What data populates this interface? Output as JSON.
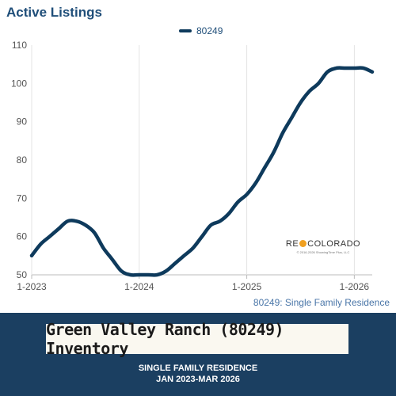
{
  "chart_data": {
    "type": "line",
    "title": "Active Listings",
    "series": [
      {
        "name": "80249",
        "color": "#0e3a5c",
        "x": [
          "2023-01",
          "2023-02",
          "2023-03",
          "2023-04",
          "2023-05",
          "2023-06",
          "2023-07",
          "2023-08",
          "2023-09",
          "2023-10",
          "2023-11",
          "2023-12",
          "2024-01",
          "2024-02",
          "2024-03",
          "2024-04",
          "2024-05",
          "2024-06",
          "2024-07",
          "2024-08",
          "2024-09",
          "2024-10",
          "2024-11",
          "2024-12",
          "2025-01",
          "2025-02",
          "2025-03",
          "2025-04",
          "2025-05",
          "2025-06",
          "2025-07",
          "2025-08",
          "2025-09",
          "2025-10",
          "2025-11",
          "2025-12",
          "2026-01",
          "2026-02",
          "2026-03"
        ],
        "values": [
          55,
          58,
          60,
          62,
          64,
          64,
          63,
          61,
          57,
          54,
          51,
          50,
          50,
          50,
          50,
          51,
          53,
          55,
          57,
          60,
          63,
          64,
          66,
          69,
          71,
          74,
          78,
          82,
          87,
          91,
          95,
          98,
          100,
          103,
          104,
          104,
          104,
          104,
          103
        ]
      }
    ],
    "x_ticks": [
      "1-2023",
      "1-2024",
      "1-2025",
      "1-2026"
    ],
    "y_ticks": [
      50,
      60,
      70,
      80,
      90,
      100,
      110
    ],
    "ylim": [
      50,
      110
    ],
    "grid": "vertical",
    "legend_position": "top-center"
  },
  "watermark": {
    "brand": "RE COLORADO",
    "brand_left": "RE",
    "brand_right": "COLORADO",
    "copyright": "© 2016-2026 ShowingTime Plus, LLC"
  },
  "series_note": "80249: Single Family Residence",
  "banner": {
    "title": "Green Valley Ranch (80249) Inventory",
    "line1": "SINGLE FAMILY RESIDENCE",
    "line2": "JAN 2023-MAR 2026"
  },
  "colors": {
    "line": "#0e3a5c",
    "title": "#1f4e79",
    "footer_bg": "#1b3f61",
    "logo_dot": "#f0a020"
  }
}
